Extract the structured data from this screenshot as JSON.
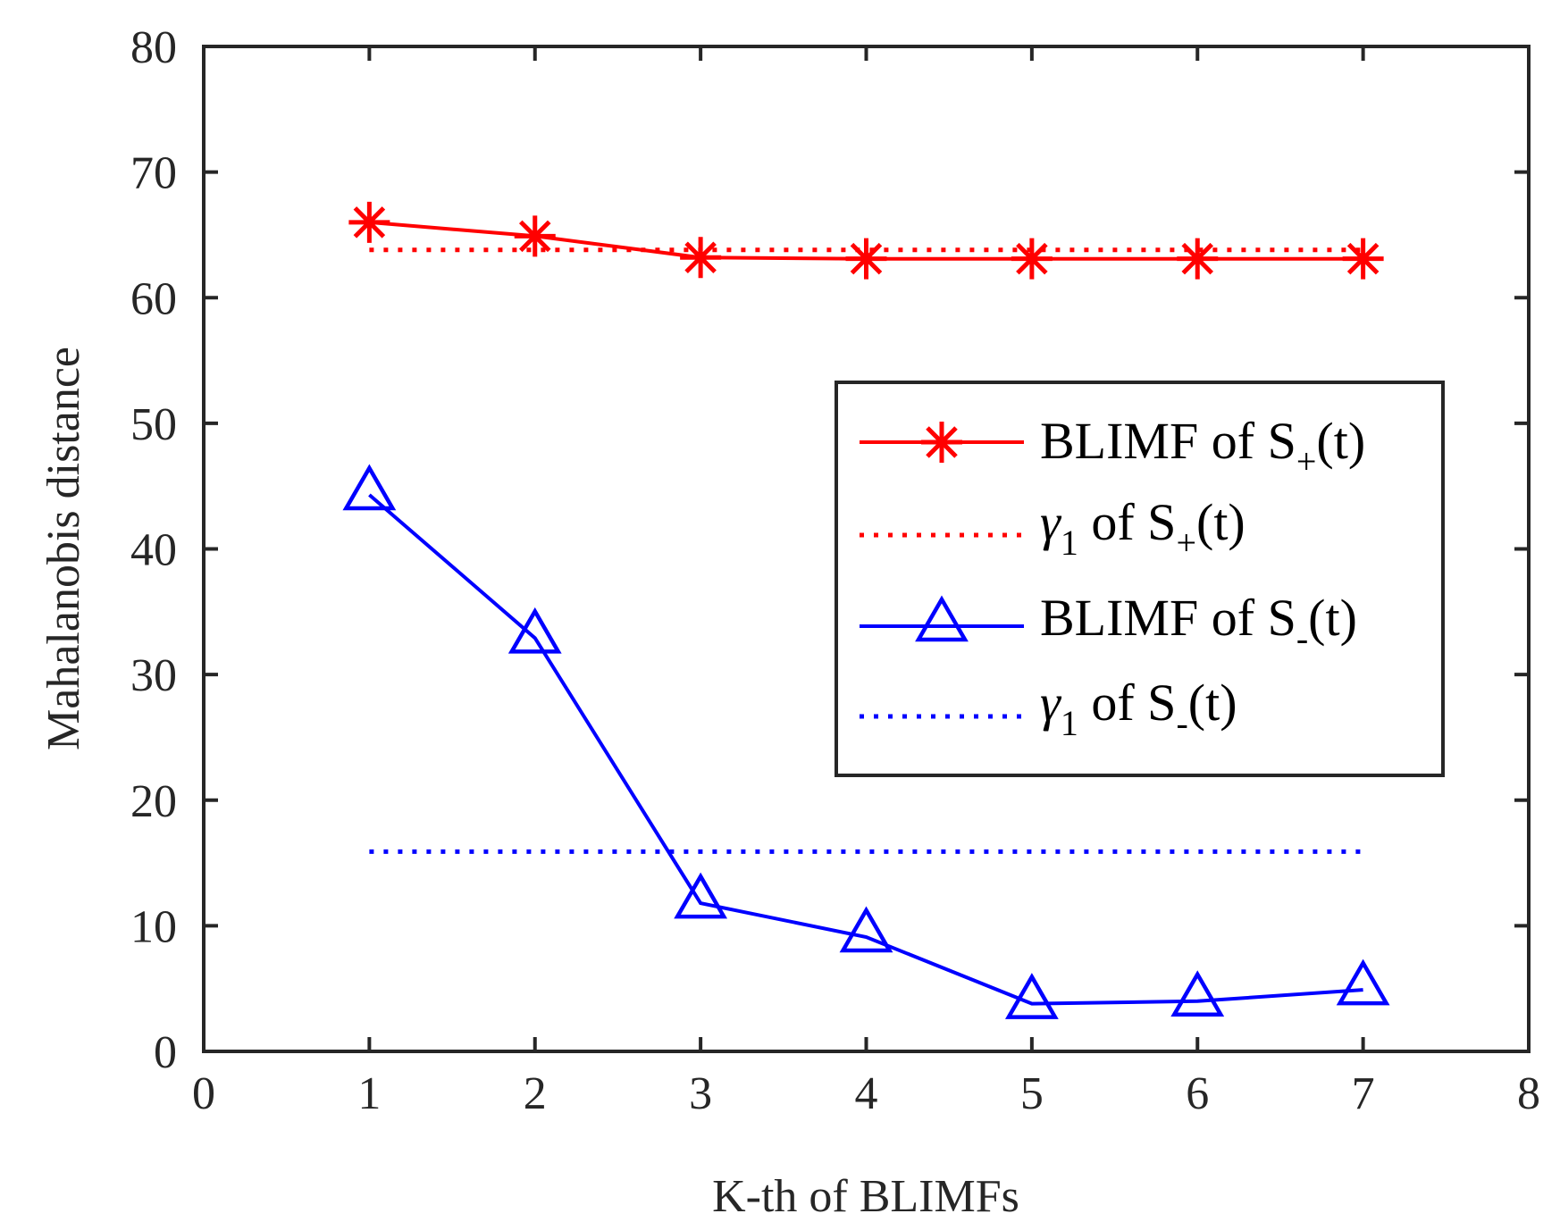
{
  "chart_data": {
    "type": "line",
    "xlabel": "K-th of BLIMFs",
    "ylabel": "Mahalanobis distance",
    "xlim": [
      0,
      8
    ],
    "ylim": [
      0,
      80
    ],
    "xticks": [
      0,
      1,
      2,
      3,
      4,
      5,
      6,
      7,
      8
    ],
    "yticks": [
      0,
      10,
      20,
      30,
      40,
      50,
      60,
      70,
      80
    ],
    "xtick_labels": [
      "0",
      "1",
      "2",
      "3",
      "4",
      "5",
      "6",
      "7",
      "8"
    ],
    "ytick_labels": [
      "0",
      "10",
      "20",
      "30",
      "40",
      "50",
      "60",
      "70",
      "80"
    ],
    "grid": false,
    "legend_position": "center-right",
    "series": [
      {
        "id": "blimf_plus",
        "legend": {
          "prefix": "BLIMF of S",
          "sub": "+",
          "suffix": "(t)"
        },
        "color": "#ff0000",
        "line_style": "solid",
        "marker": "asterisk",
        "x": [
          1,
          2,
          3,
          4,
          5,
          6,
          7
        ],
        "values": [
          66.0,
          64.9,
          63.2,
          63.1,
          63.1,
          63.1,
          63.1
        ]
      },
      {
        "id": "gamma_plus",
        "legend": {
          "prefix": "γ",
          "prefix_sub": "1",
          "middle": " of S",
          "sub": "+",
          "suffix": "(t)"
        },
        "color": "#ff0000",
        "line_style": "dotted",
        "marker": "none",
        "x": [
          1,
          7
        ],
        "values": [
          63.8,
          63.8
        ]
      },
      {
        "id": "blimf_minus",
        "legend": {
          "prefix": "BLIMF of S",
          "sub": "-",
          "suffix": "(t)"
        },
        "color": "#0000ff",
        "line_style": "solid",
        "marker": "triangle",
        "x": [
          1,
          2,
          3,
          4,
          5,
          6,
          7
        ],
        "values": [
          44.3,
          32.9,
          11.8,
          9.1,
          3.8,
          4.0,
          4.9
        ]
      },
      {
        "id": "gamma_minus",
        "legend": {
          "prefix": "γ",
          "prefix_sub": "1",
          "middle": " of S",
          "sub": "-",
          "suffix": "(t)"
        },
        "color": "#0000ff",
        "line_style": "dotted",
        "marker": "none",
        "x": [
          1,
          7
        ],
        "values": [
          15.9,
          15.9
        ]
      }
    ]
  }
}
